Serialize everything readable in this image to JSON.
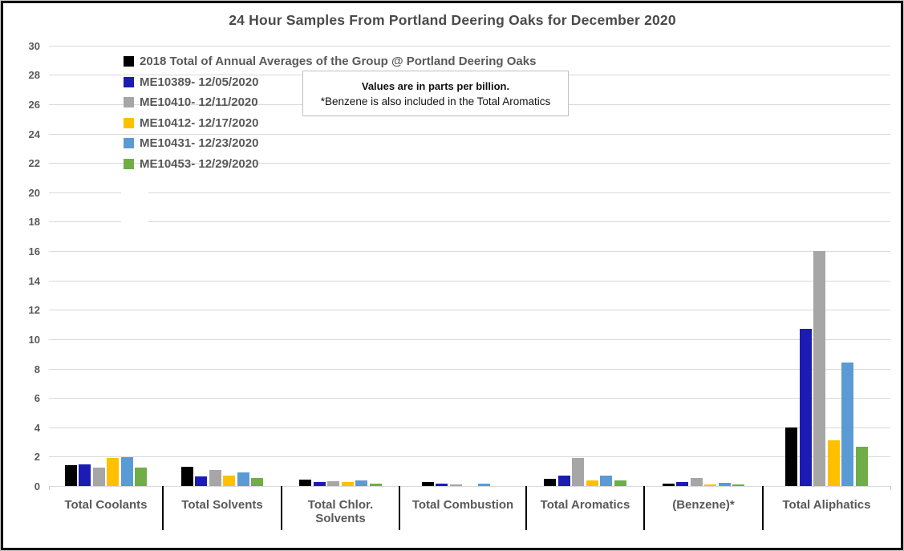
{
  "note": {
    "line1": "Values are in parts per billion.",
    "line2": "*Benzene is also included in the Total Aromatics"
  },
  "colors": {
    "gridline": "#d9d9d9",
    "axis_text": "#595959",
    "title_text": "#4a4a4a",
    "divider": "#000000",
    "note_border": "#bfbfbf"
  },
  "chart_data": {
    "type": "bar",
    "title": "24 Hour Samples From Portland Deering Oaks for December 2020",
    "categories": [
      "Total Coolants",
      "Total Solvents",
      "Total Chlor. Solvents",
      "Total Combustion",
      "Total Aromatics",
      "(Benzene)*",
      "Total Aliphatics"
    ],
    "series": [
      {
        "name": "2018 Total of Annual Averages of the Group @ Portland Deering Oaks",
        "color": "#000000",
        "values": [
          1.4,
          1.3,
          0.45,
          0.3,
          0.5,
          0.15,
          4.0
        ]
      },
      {
        "name": "ME10389- 12/05/2020",
        "color": "#1c1cb4",
        "values": [
          1.45,
          0.65,
          0.3,
          0.15,
          0.7,
          0.25,
          10.7
        ]
      },
      {
        "name": "ME10410- 12/11/2020",
        "color": "#a6a6a6",
        "values": [
          1.25,
          1.1,
          0.35,
          0.12,
          1.9,
          0.55,
          16.0
        ]
      },
      {
        "name": "ME10412- 12/17/2020",
        "color": "#ffc000",
        "values": [
          1.9,
          0.7,
          0.3,
          0,
          0.4,
          0.1,
          3.1
        ]
      },
      {
        "name": "ME10431- 12/23/2020",
        "color": "#5b9bd5",
        "values": [
          1.95,
          0.95,
          0.4,
          0.15,
          0.7,
          0.2,
          8.4
        ]
      },
      {
        "name": "ME10453- 12/29/2020",
        "color": "#70ad47",
        "values": [
          1.25,
          0.55,
          0.15,
          0,
          0.4,
          0.1,
          2.7
        ]
      }
    ],
    "ylim": [
      0,
      30
    ],
    "ytick_step": 2,
    "values_unit": "parts per billion",
    "grid": true,
    "legend_position": "top-left"
  }
}
